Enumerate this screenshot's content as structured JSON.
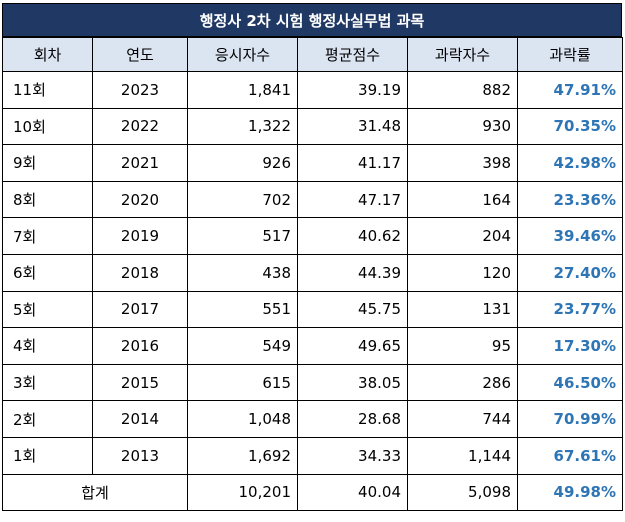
{
  "title": "행정사 2차 시험 행정사실무법 과목",
  "headers": [
    "회차",
    "연도",
    "응시자수",
    "평균점수",
    "과락자수",
    "과락률"
  ],
  "rows": [
    {
      "round": "11회",
      "year": "2023",
      "applicants": "1,841",
      "avg": "39.19",
      "fails": "882",
      "rate": "47.91%"
    },
    {
      "round": "10회",
      "year": "2022",
      "applicants": "1,322",
      "avg": "31.48",
      "fails": "930",
      "rate": "70.35%"
    },
    {
      "round": "9회",
      "year": "2021",
      "applicants": "926",
      "avg": "41.17",
      "fails": "398",
      "rate": "42.98%"
    },
    {
      "round": "8회",
      "year": "2020",
      "applicants": "702",
      "avg": "47.17",
      "fails": "164",
      "rate": "23.36%"
    },
    {
      "round": "7회",
      "year": "2019",
      "applicants": "517",
      "avg": "40.62",
      "fails": "204",
      "rate": "39.46%"
    },
    {
      "round": "6회",
      "year": "2018",
      "applicants": "438",
      "avg": "44.39",
      "fails": "120",
      "rate": "27.40%"
    },
    {
      "round": "5회",
      "year": "2017",
      "applicants": "551",
      "avg": "45.75",
      "fails": "131",
      "rate": "23.77%"
    },
    {
      "round": "4회",
      "year": "2016",
      "applicants": "549",
      "avg": "49.65",
      "fails": "95",
      "rate": "17.30%"
    },
    {
      "round": "3회",
      "year": "2015",
      "applicants": "615",
      "avg": "38.05",
      "fails": "286",
      "rate": "46.50%"
    },
    {
      "round": "2회",
      "year": "2014",
      "applicants": "1,048",
      "avg": "28.68",
      "fails": "744",
      "rate": "70.99%"
    },
    {
      "round": "1회",
      "year": "2013",
      "applicants": "1,692",
      "avg": "34.33",
      "fails": "1,144",
      "rate": "67.61%"
    }
  ],
  "total": {
    "label": "합계",
    "applicants": "10,201",
    "avg": "40.04",
    "fails": "5,098",
    "rate": "49.98%"
  },
  "colors": {
    "title_bg": "#1f3864",
    "header_bg": "#dbe5f1",
    "rate_text": "#2e75b6"
  }
}
